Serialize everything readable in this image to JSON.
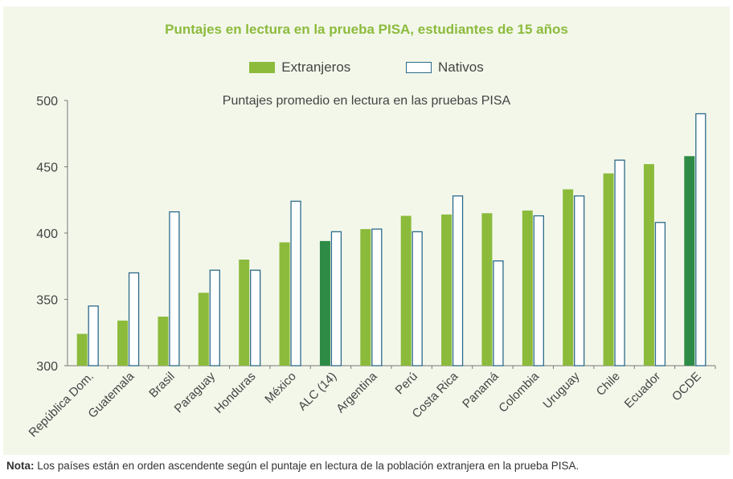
{
  "chart_data": {
    "type": "bar",
    "title": "Puntajes en lectura en la prueba PISA, estudiantes de 15 años",
    "subtitle": "Puntajes promedio en lectura en las pruebas PISA",
    "categories": [
      "República Dom.",
      "Guatemala",
      "Brasil",
      "Paraguay",
      "Honduras",
      "México",
      "ALC (14)",
      "Argentina",
      "Perú",
      "Costa Rica",
      "Panamá",
      "Colombia",
      "Uruguay",
      "Chile",
      "Ecuador",
      "OCDE"
    ],
    "series": [
      {
        "name": "Extranjeros",
        "color": "#8cbb3c",
        "highlight_color": "#2e8b45",
        "values": [
          324,
          334,
          337,
          355,
          380,
          393,
          394,
          403,
          413,
          414,
          415,
          417,
          433,
          445,
          452,
          458
        ]
      },
      {
        "name": "Nativos",
        "color": "#ffffff",
        "stroke": "#2c6a8a",
        "values": [
          345,
          370,
          416,
          372,
          372,
          424,
          401,
          403,
          401,
          428,
          379,
          413,
          428,
          455,
          408,
          490
        ]
      }
    ],
    "highlighted_categories": [
      "ALC (14)",
      "OCDE"
    ],
    "ylim": [
      300,
      500
    ],
    "yticks": [
      300,
      350,
      400,
      450,
      500
    ],
    "legend": "top-center",
    "grid": false,
    "note_label": "Nota:",
    "note": "Los países están en orden ascendente según el puntaje en lectura de la población extranjera en la prueba PISA."
  }
}
